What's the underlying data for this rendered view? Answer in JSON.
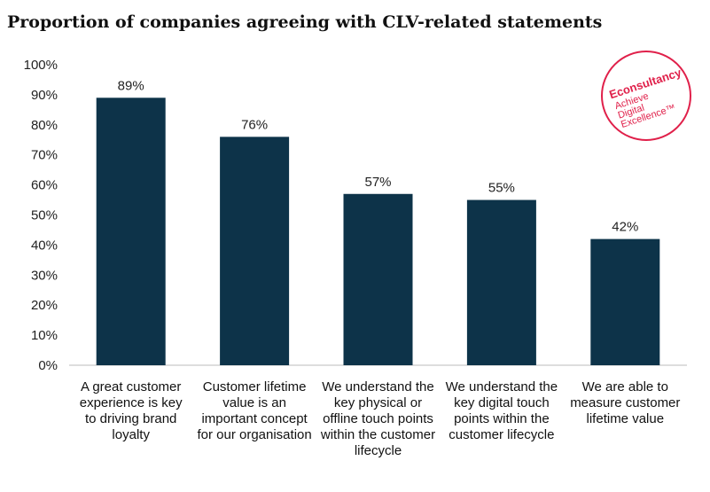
{
  "chart_data": {
    "type": "bar",
    "title": "Proportion of companies agreeing with CLV-related statements",
    "categories": [
      "A great customer experience is key to driving brand loyalty",
      "Customer lifetime value is an important concept for our organisation",
      "We understand the key physical or offline touch points within the customer lifecycle",
      "We understand the key digital touch points within the customer lifecycle",
      "We are able to measure customer lifetime value"
    ],
    "values": [
      89,
      76,
      57,
      55,
      42
    ],
    "data_labels": [
      "89%",
      "76%",
      "57%",
      "55%",
      "42%"
    ],
    "yticks": [
      "0%",
      "10%",
      "20%",
      "30%",
      "40%",
      "50%",
      "60%",
      "70%",
      "80%",
      "90%",
      "100%"
    ],
    "ylim": [
      0,
      100
    ],
    "xlabel": "",
    "ylabel": "",
    "grid": false,
    "bar_color": "#0d3349"
  },
  "logo": {
    "text": "Econsultancy Achieve Digital Excellence",
    "color": "#e0204a"
  }
}
